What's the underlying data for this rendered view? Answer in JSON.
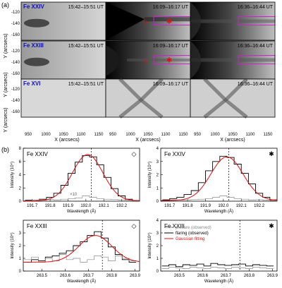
{
  "panel_a": {
    "label": "(a)",
    "row_labels": [
      "Fe XXIV",
      "Fe XXIII",
      "Fe XVI"
    ],
    "time_labels": [
      "15:42–15:51 UT",
      "16:09–16:17 UT",
      "16:36–16:44 UT"
    ],
    "y_axis_label": "Y (arcsecs)",
    "x_axis_label": "X (arcsecs)",
    "y_ticks": [
      "-120",
      "-140",
      "-160"
    ],
    "x_ticks": [
      "950",
      "1000",
      "1050",
      "1100",
      "1150"
    ],
    "markers": {
      "star": "✱",
      "diamond": "◇"
    },
    "colors": {
      "box": "#d020d0",
      "marker": "#e01010"
    }
  },
  "panel_b": {
    "label": "(b)",
    "x_axis_label": "Wavelength (Å)",
    "y_axis_label": "Intensity (10⁴)",
    "times10_label": "×10",
    "legend": [
      "preflare (observed)",
      "flaring (observed)",
      "Gaussian fitting"
    ],
    "colors": {
      "preflare": "#888888",
      "flaring": "#000000",
      "fit": "#e01010"
    }
  },
  "chart_data": [
    {
      "type": "line",
      "title": "Fe XXIV",
      "marker": "◇",
      "xlim": [
        191.65,
        192.3
      ],
      "ylim": [
        0,
        8
      ],
      "xticks": [
        191.7,
        191.8,
        191.9,
        192.0,
        192.1,
        192.2
      ],
      "yticks": [
        0,
        2,
        4,
        6,
        8
      ],
      "vline": 192.03,
      "series": [
        {
          "name": "flaring (observed)",
          "x": [
            191.68,
            191.72,
            191.76,
            191.8,
            191.84,
            191.88,
            191.92,
            191.96,
            192.0,
            192.04,
            192.08,
            192.12,
            192.16,
            192.2,
            192.24,
            192.28
          ],
          "values": [
            0.15,
            0.05,
            0.3,
            0.6,
            1.2,
            2.4,
            4.2,
            5.9,
            6.9,
            6.7,
            5.5,
            3.6,
            1.9,
            0.8,
            0.3,
            0.1
          ]
        },
        {
          "name": "preflare (observed)",
          "x": [
            191.68,
            191.72,
            191.76,
            191.8,
            191.84,
            191.88,
            191.92,
            191.96,
            192.0,
            192.04,
            192.08,
            192.12,
            192.16,
            192.2,
            192.24,
            192.28
          ],
          "values": [
            0.1,
            0.2,
            0.15,
            0.25,
            0.2,
            0.3,
            0.35,
            0.5,
            0.8,
            0.6,
            0.4,
            0.3,
            0.25,
            0.2,
            0.15,
            0.1
          ]
        },
        {
          "name": "Gaussian fitting",
          "gaussian": {
            "amp": 7.0,
            "center": 192.01,
            "sigma": 0.085,
            "base": 0.05
          }
        }
      ]
    },
    {
      "type": "line",
      "title": "Fe XXIV",
      "marker": "✱",
      "xlim": [
        191.65,
        192.3
      ],
      "ylim": [
        0,
        4
      ],
      "xticks": [
        191.7,
        191.8,
        191.9,
        192.0,
        192.1,
        192.2
      ],
      "yticks": [
        0,
        1,
        2,
        3,
        4
      ],
      "vline": 192.03,
      "series": [
        {
          "name": "flaring (observed)",
          "x": [
            191.68,
            191.72,
            191.76,
            191.8,
            191.84,
            191.88,
            191.92,
            191.96,
            192.0,
            192.04,
            192.08,
            192.12,
            192.16,
            192.2,
            192.24,
            192.28
          ],
          "values": [
            0.1,
            0.2,
            0.3,
            0.5,
            0.8,
            1.4,
            2.3,
            3.0,
            3.4,
            3.3,
            2.8,
            2.1,
            1.3,
            0.6,
            0.3,
            0.1
          ]
        },
        {
          "name": "preflare (observed)",
          "x": [
            191.68,
            191.72,
            191.76,
            191.8,
            191.84,
            191.88,
            191.92,
            191.96,
            192.0,
            192.04,
            192.08,
            192.12,
            192.16,
            192.2,
            192.24,
            192.28
          ],
          "values": [
            0.05,
            0.1,
            0.08,
            0.1,
            0.12,
            0.15,
            0.2,
            0.3,
            0.4,
            0.3,
            0.2,
            0.15,
            0.1,
            0.12,
            0.08,
            0.05
          ]
        },
        {
          "name": "Gaussian fitting",
          "gaussian": {
            "amp": 3.3,
            "center": 192.02,
            "sigma": 0.09,
            "base": 0.05
          }
        }
      ]
    },
    {
      "type": "line",
      "title": "Fe XXIII",
      "marker": "◇",
      "xlim": [
        263.42,
        263.92
      ],
      "ylim": [
        0,
        4
      ],
      "xticks": [
        263.5,
        263.6,
        263.7,
        263.8,
        263.9
      ],
      "yticks": [
        0,
        1,
        2,
        3
      ],
      "vline": 263.76,
      "series": [
        {
          "name": "flaring (observed)",
          "x": [
            263.44,
            263.47,
            263.5,
            263.53,
            263.56,
            263.59,
            263.62,
            263.65,
            263.68,
            263.71,
            263.74,
            263.77,
            263.8,
            263.83,
            263.86,
            263.89
          ],
          "values": [
            0.7,
            0.9,
            0.8,
            1.1,
            1.2,
            1.4,
            1.6,
            2.0,
            2.3,
            2.8,
            3.1,
            2.6,
            1.9,
            1.3,
            0.9,
            0.7
          ]
        },
        {
          "name": "preflare (observed)",
          "x": [
            263.44,
            263.47,
            263.5,
            263.53,
            263.56,
            263.59,
            263.62,
            263.65,
            263.68,
            263.71,
            263.74,
            263.77,
            263.8,
            263.83,
            263.86,
            263.89
          ],
          "values": [
            0.9,
            1.1,
            0.7,
            1.0,
            0.8,
            1.3,
            0.9,
            1.0,
            0.7,
            0.9,
            1.2,
            1.1,
            0.8,
            1.2,
            1.0,
            0.8
          ]
        },
        {
          "name": "Gaussian fitting",
          "gaussian": {
            "amp": 2.1,
            "center": 263.73,
            "sigma": 0.07,
            "base": 0.7
          }
        }
      ]
    },
    {
      "type": "line",
      "title": "Fe XXIII",
      "marker": "✱",
      "xlim": [
        263.42,
        263.92
      ],
      "ylim": [
        0,
        4
      ],
      "xticks": [
        263.5,
        263.6,
        263.7,
        263.8,
        263.9
      ],
      "yticks": [
        0,
        1,
        2,
        3,
        4
      ],
      "vline": 263.76,
      "series": [
        {
          "name": "flaring (observed)",
          "x": [
            263.44,
            263.47,
            263.5,
            263.53,
            263.56,
            263.59,
            263.62,
            263.65,
            263.68,
            263.71,
            263.74,
            263.77,
            263.8,
            263.83,
            263.86,
            263.89
          ],
          "values": [
            0.4,
            0.5,
            0.35,
            0.5,
            0.45,
            0.55,
            0.4,
            0.6,
            0.5,
            0.45,
            0.5,
            0.55,
            0.4,
            0.5,
            0.45,
            0.4
          ]
        },
        {
          "name": "preflare (observed)",
          "x": [
            263.44,
            263.47,
            263.5,
            263.53,
            263.56,
            263.59,
            263.62,
            263.65,
            263.68,
            263.71,
            263.74,
            263.77,
            263.8,
            263.83,
            263.86,
            263.89
          ],
          "values": [
            0.2,
            0.3,
            0.25,
            0.2,
            0.3,
            0.25,
            0.2,
            0.3,
            0.25,
            0.2,
            0.3,
            0.25,
            0.2,
            0.3,
            0.25,
            0.2
          ]
        }
      ]
    }
  ]
}
